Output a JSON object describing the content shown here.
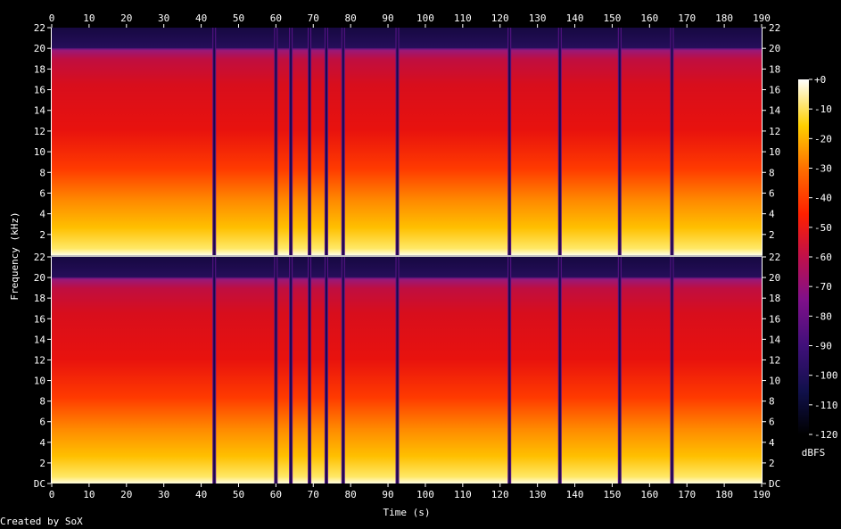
{
  "chart_data": {
    "type": "heatmap",
    "title": "",
    "xlabel": "Time (s)",
    "ylabel": "Frequency (kHz)",
    "xlim": [
      0,
      190
    ],
    "ylim": [
      0,
      22
    ],
    "x_ticks": [
      0,
      10,
      20,
      30,
      40,
      50,
      60,
      70,
      80,
      90,
      100,
      110,
      120,
      130,
      140,
      150,
      160,
      170,
      180,
      190
    ],
    "y_ticks_top": [
      "2",
      "4",
      "6",
      "8",
      "10",
      "12",
      "14",
      "16",
      "18",
      "20",
      "22"
    ],
    "y_ticks_bottom": [
      "DC",
      "2",
      "4",
      "6",
      "8",
      "10",
      "12",
      "14",
      "16",
      "18",
      "20",
      "22"
    ],
    "channels": 2,
    "cutoff_khz": 20,
    "colorbar": {
      "label": "dBFS",
      "ticks": [
        "+0",
        "-10",
        "-20",
        "-30",
        "-40",
        "-50",
        "-60",
        "-70",
        "-80",
        "-90",
        "-100",
        "-110",
        "-120"
      ],
      "range": [
        -120,
        0
      ]
    },
    "quiet_times_s": [
      43.5,
      60,
      64,
      69,
      73.5,
      78,
      92.5,
      122.5,
      136,
      152,
      166
    ],
    "colors": {
      "background": "#000000",
      "palette": [
        "#000000",
        "#1a0a4a",
        "#45127a",
        "#8a1a80",
        "#c0103a",
        "#e6100c",
        "#ff5a00",
        "#ffa800",
        "#ffe000",
        "#fffcd0",
        "#ffffff"
      ]
    }
  },
  "footer": {
    "credit": "Created by SoX"
  }
}
